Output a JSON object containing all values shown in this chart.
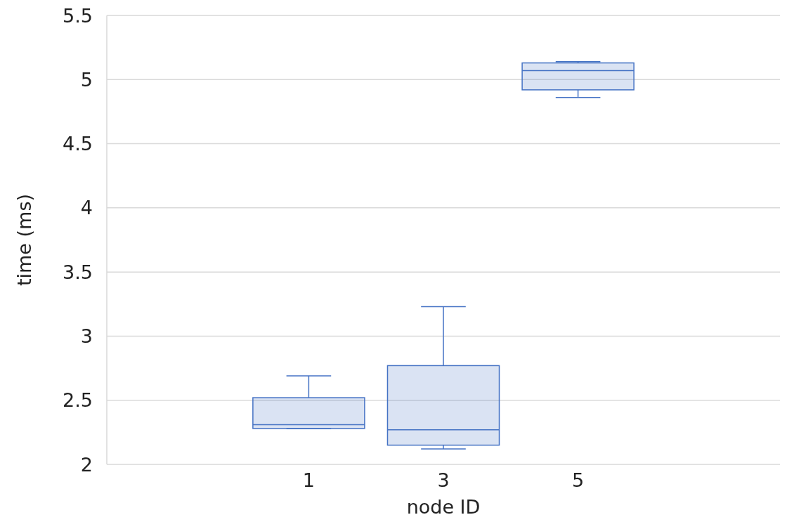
{
  "chart_data": {
    "type": "box",
    "xlabel": "node ID",
    "ylabel": "time (ms)",
    "categories": [
      null,
      "1",
      "3",
      "5",
      null
    ],
    "boxes": [
      null,
      {
        "low": 2.28,
        "q1": 2.28,
        "median": 2.31,
        "q3": 2.52,
        "high": 2.69
      },
      {
        "low": 2.12,
        "q1": 2.15,
        "median": 2.27,
        "q3": 2.77,
        "high": 3.23
      },
      {
        "low": 4.86,
        "q1": 4.92,
        "median": 5.07,
        "q3": 5.13,
        "high": 5.14
      },
      null
    ],
    "color": "#4472c4",
    "ylim": [
      2,
      5.5
    ],
    "yticks": [
      2,
      2.5,
      3,
      3.5,
      4,
      4.5,
      5,
      5.5
    ],
    "grid": "y"
  }
}
